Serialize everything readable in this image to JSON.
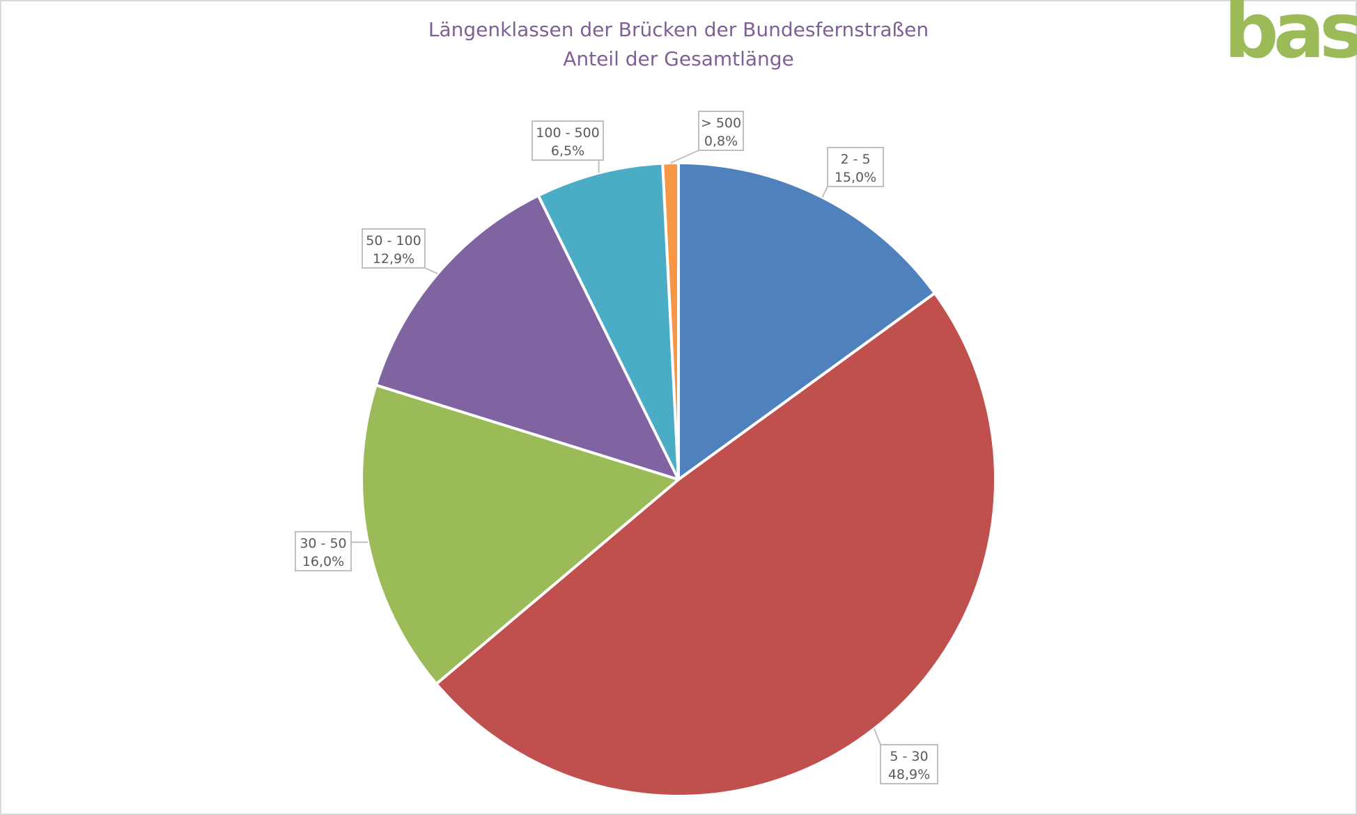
{
  "logo": {
    "text": "bast",
    "color": "#9bbb59"
  },
  "chart_data": {
    "type": "pie",
    "title": "Längenklassen der Brücken der Bundesfernstraßen",
    "subtitle": "Anteil der Gesamtlänge",
    "categories": [
      "2 - 5",
      "5 - 30",
      "30 - 50",
      "50 - 100",
      "100 - 500",
      "> 500"
    ],
    "values": [
      15.0,
      48.9,
      16.0,
      12.9,
      6.5,
      0.8
    ],
    "value_labels": [
      "15,0%",
      "48,9%",
      "16,0%",
      "12,9%",
      "6,5%",
      "0,8%"
    ],
    "colors": [
      "#4f81bd",
      "#c0504d",
      "#9bbb59",
      "#8064a2",
      "#4bacc6",
      "#f79646"
    ],
    "legend": "none",
    "data_labels": "callout"
  }
}
